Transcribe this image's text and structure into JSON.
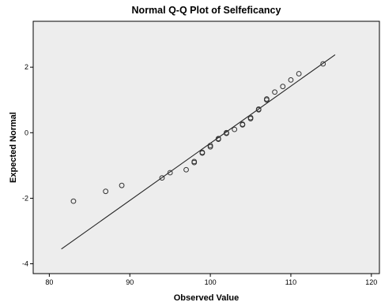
{
  "chart_data": {
    "type": "scatter",
    "title": "Normal Q-Q Plot of Selfeficancy",
    "xlabel": "Observed Value",
    "ylabel": "Expected Normal",
    "xlim": [
      78,
      121
    ],
    "ylim": [
      -4.3,
      3.4
    ],
    "x_ticks": [
      80,
      90,
      100,
      110,
      120
    ],
    "y_ticks": [
      -4,
      -2,
      0,
      2
    ],
    "x_tick_labels": [
      "80",
      "90",
      "100",
      "110",
      "120"
    ],
    "y_tick_labels": [
      "-4",
      "-2",
      "0",
      "2"
    ],
    "grid": false,
    "legend": "none",
    "points": [
      {
        "x": 83,
        "y": -2.09
      },
      {
        "x": 87,
        "y": -1.79
      },
      {
        "x": 89,
        "y": -1.61
      },
      {
        "x": 94,
        "y": -1.38
      },
      {
        "x": 95,
        "y": -1.22
      },
      {
        "x": 97,
        "y": -1.13
      },
      {
        "x": 98,
        "y": -0.91
      },
      {
        "x": 98,
        "y": -0.88
      },
      {
        "x": 99,
        "y": -0.62
      },
      {
        "x": 99,
        "y": -0.6
      },
      {
        "x": 100,
        "y": -0.43
      },
      {
        "x": 100,
        "y": -0.39
      },
      {
        "x": 101,
        "y": -0.2
      },
      {
        "x": 101,
        "y": -0.18
      },
      {
        "x": 102,
        "y": -0.02
      },
      {
        "x": 102,
        "y": 0.0
      },
      {
        "x": 103,
        "y": 0.1
      },
      {
        "x": 104,
        "y": 0.24
      },
      {
        "x": 104,
        "y": 0.26
      },
      {
        "x": 105,
        "y": 0.43
      },
      {
        "x": 105,
        "y": 0.46
      },
      {
        "x": 106,
        "y": 0.7
      },
      {
        "x": 106,
        "y": 0.72
      },
      {
        "x": 107,
        "y": 1.0
      },
      {
        "x": 107,
        "y": 1.03
      },
      {
        "x": 108,
        "y": 1.24
      },
      {
        "x": 109,
        "y": 1.41
      },
      {
        "x": 110,
        "y": 1.61
      },
      {
        "x": 111,
        "y": 1.8
      },
      {
        "x": 114,
        "y": 2.1
      }
    ],
    "reference_line": {
      "x_start": 81.5,
      "y_start": -3.55,
      "x_end": 115.5,
      "y_end": 2.38
    },
    "colors": {
      "plot_background": "#ededed",
      "marker_stroke": "#333333",
      "line": "#222222",
      "axis": "#000000",
      "page_background": "#ffffff"
    }
  }
}
